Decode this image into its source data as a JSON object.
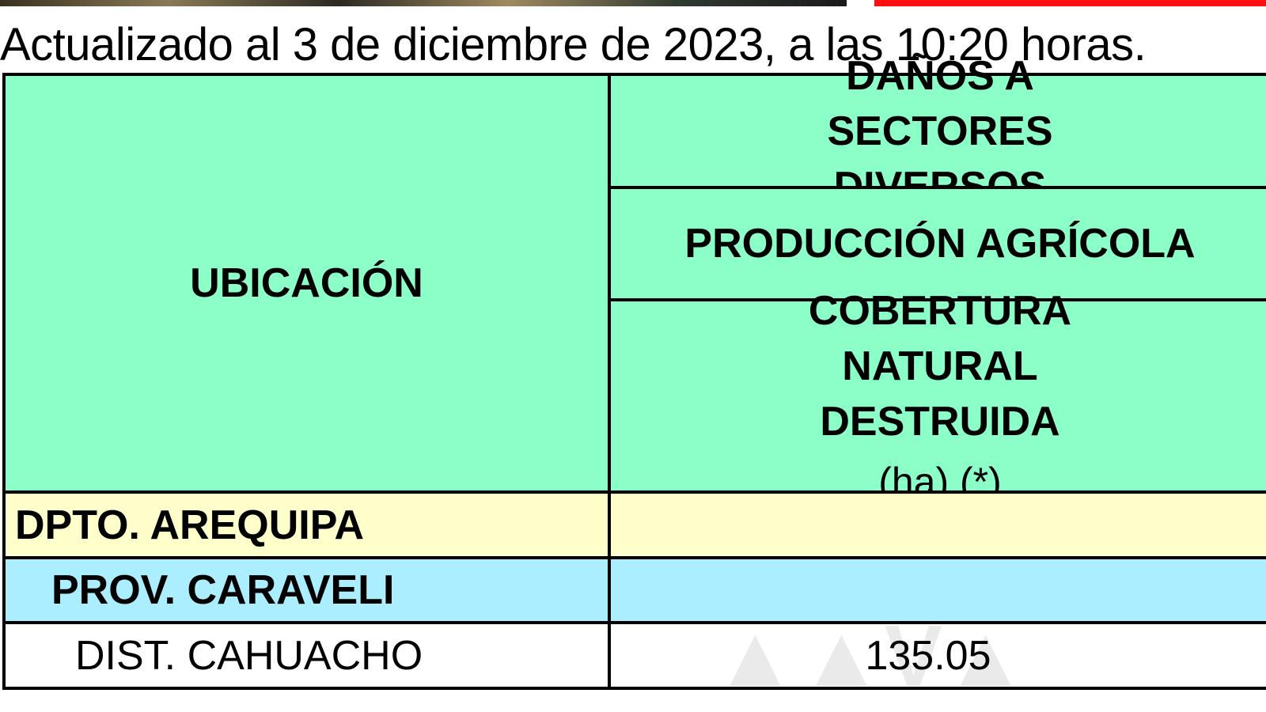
{
  "header_note": "Actualizado al 3 de diciembre de 2023, a las 10:20 horas.",
  "table": {
    "col_location": "UBICACIÓN",
    "group_header": "DAÑOS A SECTORES DIVERSOS",
    "sub_header": "PRODUCCIÓN AGRÍCOLA",
    "value_header_line1": "COBERTURA NATURAL DESTRUIDA",
    "value_header_line2": "(ha) (*)",
    "rows": [
      {
        "location": "DPTO. AREQUIPA",
        "value": ""
      },
      {
        "location": "PROV. CARAVELI",
        "value": ""
      },
      {
        "location": "DIST. CAHUACHO",
        "value": "135.05"
      }
    ]
  },
  "colors": {
    "header_bg": "#8cffc8",
    "dept_bg": "#ffffcc",
    "prov_bg": "#aaeeff",
    "accent_bar": "#ff1010"
  }
}
